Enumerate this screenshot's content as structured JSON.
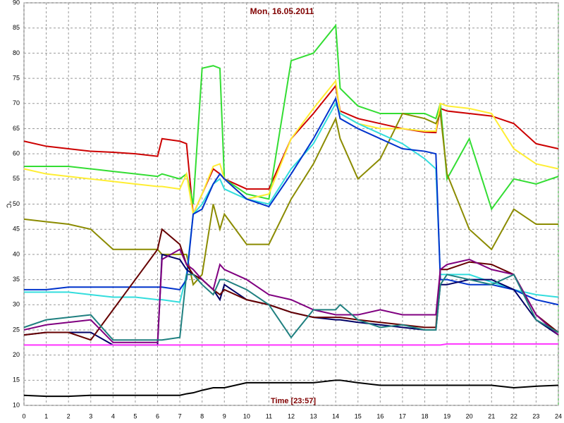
{
  "chart_data": {
    "type": "line",
    "title": "Mon, 16.05.2011",
    "x_label": "Time [23:57]",
    "y_label": "°C",
    "x": [
      0,
      1,
      2,
      3,
      4,
      5,
      6,
      6.2,
      7,
      7.3,
      7.6,
      8,
      8.5,
      8.8,
      9,
      10,
      11,
      12,
      13,
      14,
      14.2,
      15,
      16,
      17,
      18,
      18.5,
      18.7,
      19,
      20,
      21,
      22,
      23,
      24
    ],
    "xlim": [
      0,
      24
    ],
    "xticks": [
      0,
      1,
      2,
      3,
      4,
      5,
      6,
      7,
      8,
      9,
      10,
      11,
      12,
      13,
      14,
      15,
      16,
      17,
      18,
      19,
      20,
      21,
      22,
      23,
      24
    ],
    "ylim": [
      10,
      90
    ],
    "yticks": [
      10,
      15,
      20,
      25,
      30,
      35,
      40,
      45,
      50,
      55,
      60,
      65,
      70,
      75,
      80,
      85,
      90
    ],
    "grid": true,
    "series": [
      {
        "color": "#cc0000",
        "values": [
          62.5,
          61.5,
          61,
          60.5,
          60.3,
          60,
          59.5,
          63,
          62.5,
          62,
          48,
          52,
          57,
          56,
          55,
          53,
          53,
          63,
          68,
          73.5,
          68.5,
          67,
          66,
          65,
          64.3,
          64.2,
          69,
          68.5,
          68,
          67.5,
          66,
          62,
          61
        ]
      },
      {
        "color": "#33dd33",
        "values": [
          57.5,
          57.5,
          57.5,
          57,
          56.5,
          56,
          55.5,
          56,
          55,
          56,
          50,
          77,
          77.5,
          77,
          55,
          52,
          51,
          78.5,
          80,
          85.5,
          73,
          69.5,
          68,
          68,
          68,
          67,
          70,
          55,
          63,
          49,
          55,
          54,
          55.5
        ]
      },
      {
        "color": "#ffee33",
        "values": [
          57,
          56,
          55.5,
          55,
          54.5,
          54,
          53.5,
          53.5,
          53,
          56,
          48,
          52,
          57.5,
          58,
          55,
          51,
          52,
          63,
          69,
          74.5,
          68,
          66,
          65,
          65,
          64.5,
          64.5,
          70,
          69.5,
          69,
          68,
          61,
          58,
          57
        ]
      },
      {
        "color": "#8b8b00",
        "values": [
          47,
          46.5,
          46,
          45,
          41,
          41,
          41,
          40,
          40,
          40,
          34,
          36,
          50,
          45,
          48,
          42,
          42,
          51,
          58,
          67,
          63,
          55,
          59,
          68,
          67,
          66,
          68,
          56,
          45,
          41,
          49,
          46,
          46
        ]
      },
      {
        "color": "#33dddd",
        "values": [
          32.5,
          32.5,
          32.5,
          32,
          31.5,
          31.5,
          31,
          31,
          30.5,
          36,
          48,
          50,
          54,
          55,
          53,
          51,
          50,
          57,
          62,
          70,
          68,
          66,
          64,
          62,
          59,
          57,
          36,
          36,
          36,
          34.5,
          33,
          32,
          31.5
        ]
      },
      {
        "color": "#0033cc",
        "values": [
          33,
          33,
          33.5,
          33.5,
          33.5,
          33.5,
          33.5,
          33.5,
          33,
          35,
          48,
          49,
          54,
          56,
          55,
          51,
          49.5,
          56,
          63,
          71,
          67,
          65,
          63,
          61,
          60.5,
          60,
          35,
          35,
          34,
          34,
          33,
          31,
          30
        ]
      },
      {
        "color": "#000066",
        "values": [
          24,
          24.5,
          24.5,
          24.5,
          22,
          22,
          22,
          40,
          39,
          37,
          36,
          35,
          33,
          31,
          34,
          31,
          30,
          28.5,
          27.5,
          27,
          27,
          26.5,
          26,
          25.5,
          25,
          25,
          34,
          34,
          35,
          35,
          33,
          27,
          24
        ]
      },
      {
        "color": "#660000",
        "values": [
          24,
          24.5,
          24.5,
          23,
          29,
          35,
          41,
          45,
          42,
          38,
          36,
          35,
          33,
          32,
          33,
          31,
          30,
          28.5,
          27.5,
          27.5,
          27.5,
          27,
          26.5,
          26,
          25.5,
          25.5,
          37,
          37,
          38.5,
          38,
          36,
          28,
          24.5
        ]
      },
      {
        "color": "#800080",
        "values": [
          25,
          26,
          26.5,
          27,
          22.5,
          22.5,
          22.5,
          39,
          41,
          38,
          37,
          35,
          33,
          38,
          37,
          35,
          32,
          31,
          29,
          28,
          28,
          28,
          29,
          28,
          28,
          28,
          37,
          38,
          39,
          37,
          36,
          28,
          24
        ]
      },
      {
        "color": "#208080",
        "values": [
          25.5,
          27,
          27.5,
          28,
          23,
          23,
          23,
          23,
          23.5,
          36,
          36,
          34,
          32,
          35,
          35,
          33,
          30,
          23.5,
          29,
          29,
          30,
          27,
          25.5,
          26,
          25,
          25,
          34,
          36,
          35,
          34,
          36,
          27,
          24.5
        ]
      },
      {
        "color": "#ff33ff",
        "values": [
          22,
          22,
          22,
          22,
          22,
          22,
          22,
          22,
          22,
          22,
          22,
          22,
          22,
          22,
          22,
          22,
          22,
          22,
          22,
          22,
          22,
          22,
          22,
          22,
          22,
          22,
          22,
          22.2,
          22.2,
          22.2,
          22.2,
          22.2,
          22.2
        ]
      },
      {
        "color": "#000000",
        "values": [
          12,
          11.8,
          11.8,
          12,
          12,
          12,
          12,
          12,
          12,
          12.3,
          12.5,
          13,
          13.5,
          13.5,
          13.5,
          14.5,
          14.5,
          14.5,
          14.5,
          15,
          15,
          14.5,
          14,
          14,
          14,
          14,
          14,
          14,
          14,
          14,
          13.5,
          13.8,
          14
        ]
      }
    ]
  }
}
